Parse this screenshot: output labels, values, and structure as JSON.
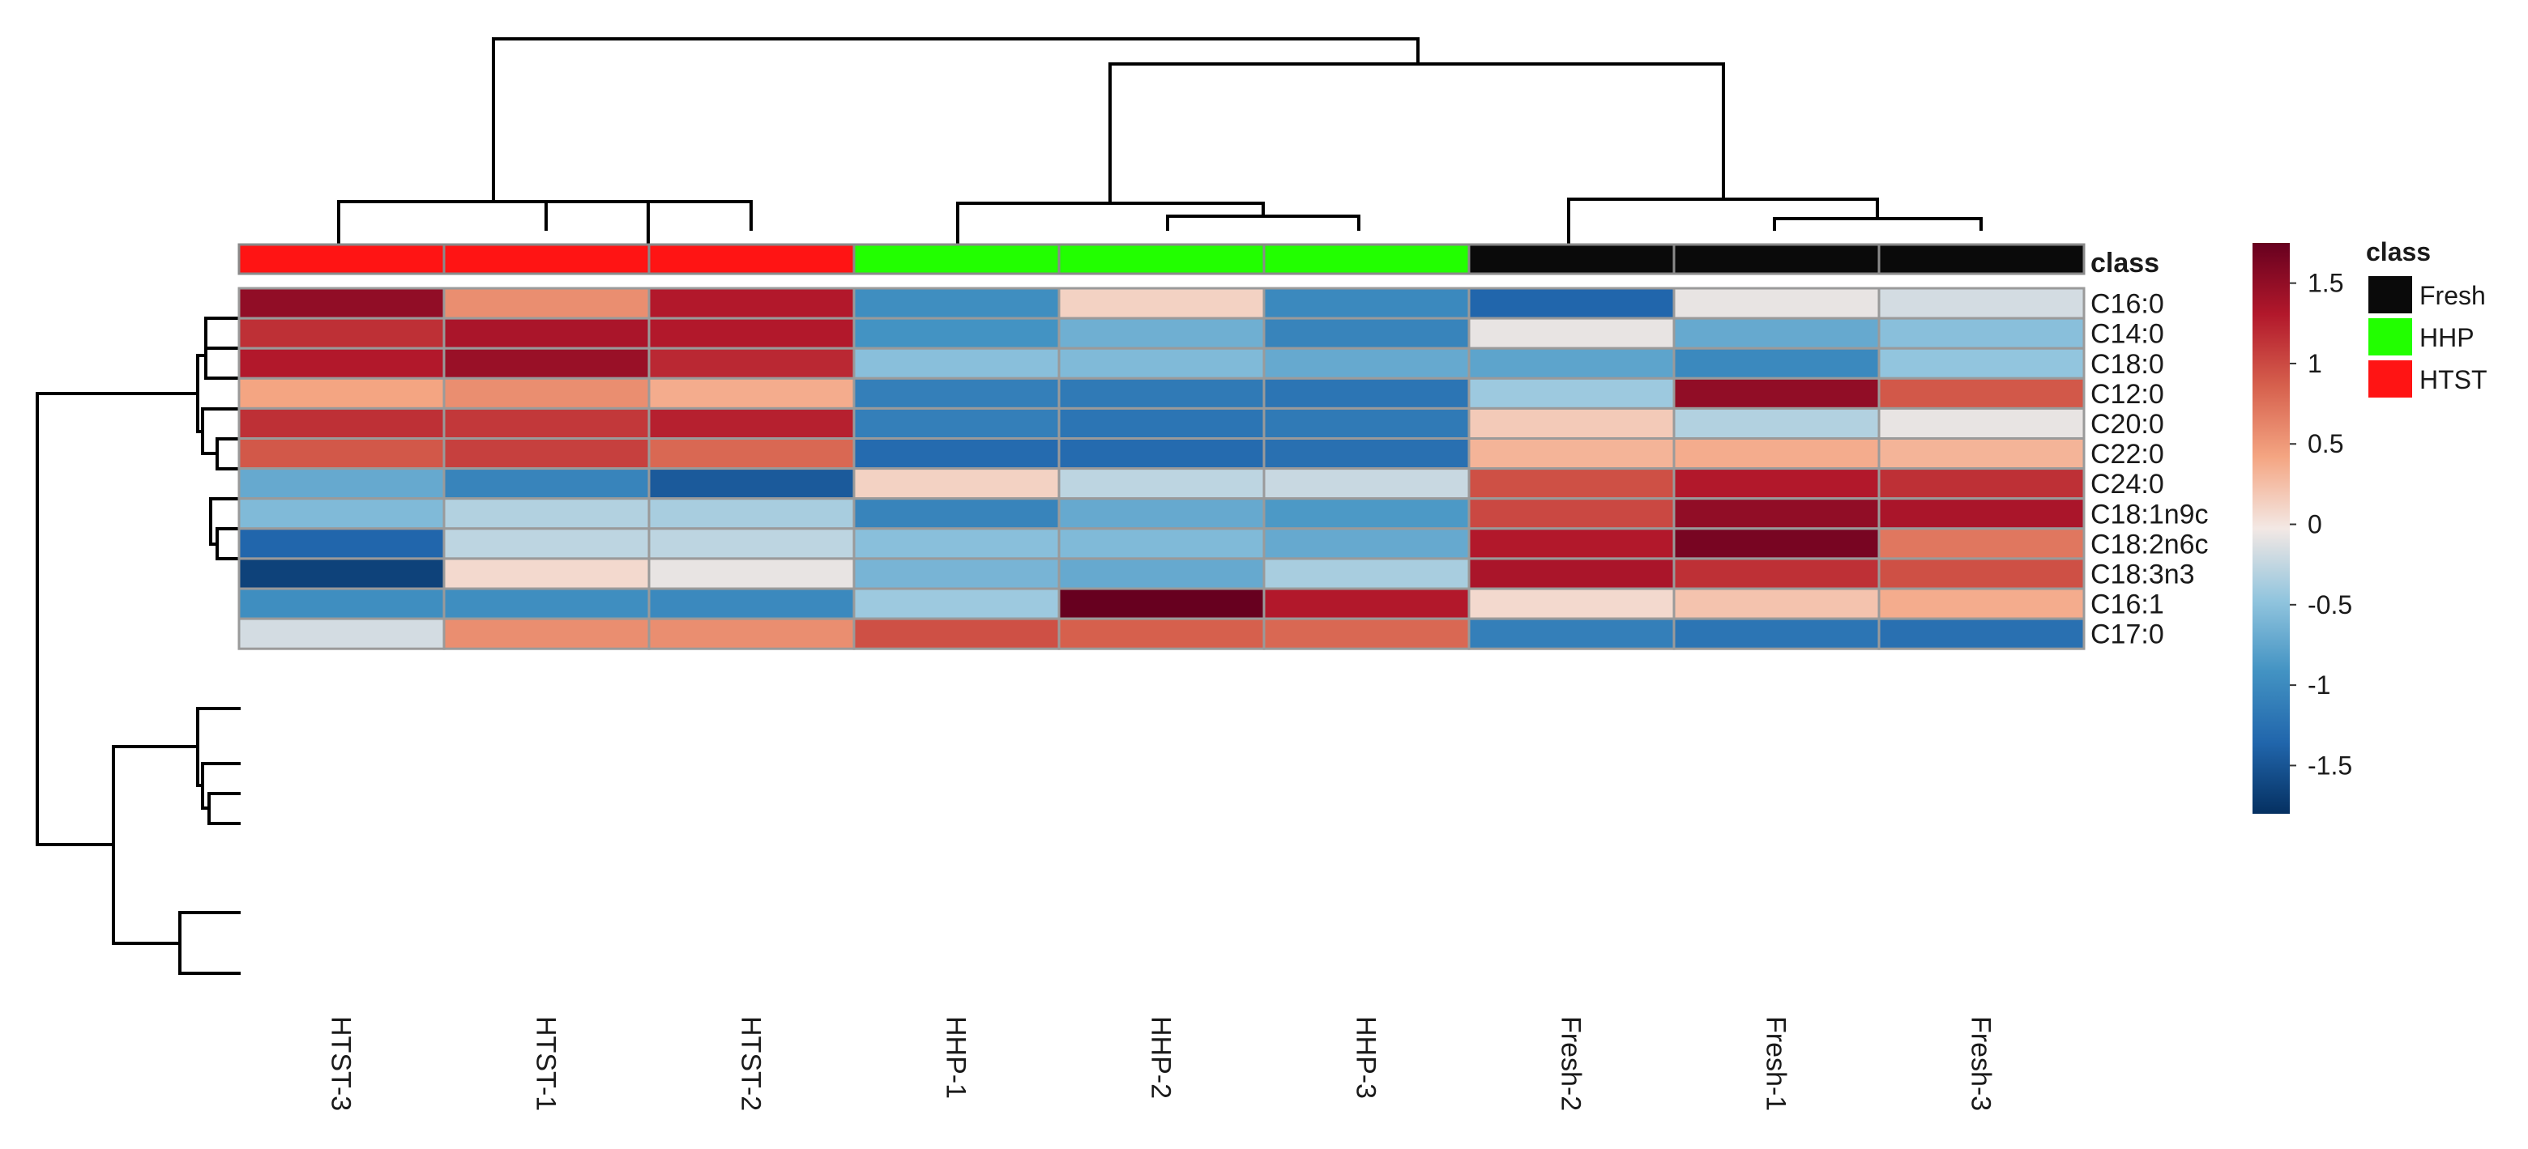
{
  "chart_data": {
    "type": "heatmap",
    "title": "",
    "columns": [
      "HTST-3",
      "HTST-1",
      "HTST-2",
      "HHP-1",
      "HHP-2",
      "HHP-3",
      "Fresh-2",
      "Fresh-1",
      "Fresh-3"
    ],
    "column_classes": [
      "HTST",
      "HTST",
      "HTST",
      "HHP",
      "HHP",
      "HHP",
      "Fresh",
      "Fresh",
      "Fresh"
    ],
    "rows": [
      "C16:0",
      "C14:0",
      "C18:0",
      "C12:0",
      "C20:0",
      "C22:0",
      "C24:0",
      "C18:1n9c",
      "C18:2n6c",
      "C18:3n3",
      "C16:1",
      "C17:0"
    ],
    "values": [
      [
        1.55,
        0.6,
        1.35,
        -0.95,
        0.15,
        -1.0,
        -1.35,
        -0.05,
        -0.15
      ],
      [
        1.2,
        1.4,
        1.35,
        -0.9,
        -0.65,
        -1.05,
        -0.05,
        -0.7,
        -0.5
      ],
      [
        1.35,
        1.5,
        1.25,
        -0.5,
        -0.55,
        -0.7,
        -0.75,
        -1.0,
        -0.45
      ],
      [
        0.45,
        0.6,
        0.4,
        -1.1,
        -1.15,
        -1.2,
        -0.4,
        1.55,
        0.95
      ],
      [
        1.2,
        1.15,
        1.3,
        -1.1,
        -1.2,
        -1.15,
        0.2,
        -0.3,
        -0.05
      ],
      [
        0.95,
        1.1,
        0.85,
        -1.3,
        -1.3,
        -1.25,
        0.35,
        0.4,
        0.35
      ],
      [
        -0.7,
        -1.05,
        -1.45,
        0.15,
        -0.25,
        -0.2,
        1.0,
        1.35,
        1.2
      ],
      [
        -0.55,
        -0.3,
        -0.35,
        -1.05,
        -0.7,
        -0.85,
        1.05,
        1.55,
        1.4
      ],
      [
        -1.35,
        -0.25,
        -0.25,
        -0.5,
        -0.55,
        -0.7,
        1.35,
        1.7,
        0.75
      ],
      [
        -1.65,
        0.1,
        -0.05,
        -0.6,
        -0.7,
        -0.35,
        1.4,
        1.2,
        1.0
      ],
      [
        -0.95,
        -0.95,
        -1.0,
        -0.4,
        1.85,
        1.35,
        0.1,
        0.25,
        0.4
      ],
      [
        -0.15,
        0.6,
        0.6,
        1.0,
        0.9,
        0.85,
        -1.1,
        -1.2,
        -1.25
      ]
    ],
    "class_label": "class",
    "colorbar": {
      "ticks": [
        1.5,
        1,
        0.5,
        0,
        -0.5,
        -1,
        -1.5
      ],
      "range": [
        -1.8,
        1.75
      ]
    },
    "legend": {
      "title": "class",
      "items": [
        {
          "name": "Fresh",
          "color": "#0a0a0a"
        },
        {
          "name": "HHP",
          "color": "#22ff00"
        },
        {
          "name": "HTST",
          "color": "#ff1414"
        }
      ]
    }
  }
}
